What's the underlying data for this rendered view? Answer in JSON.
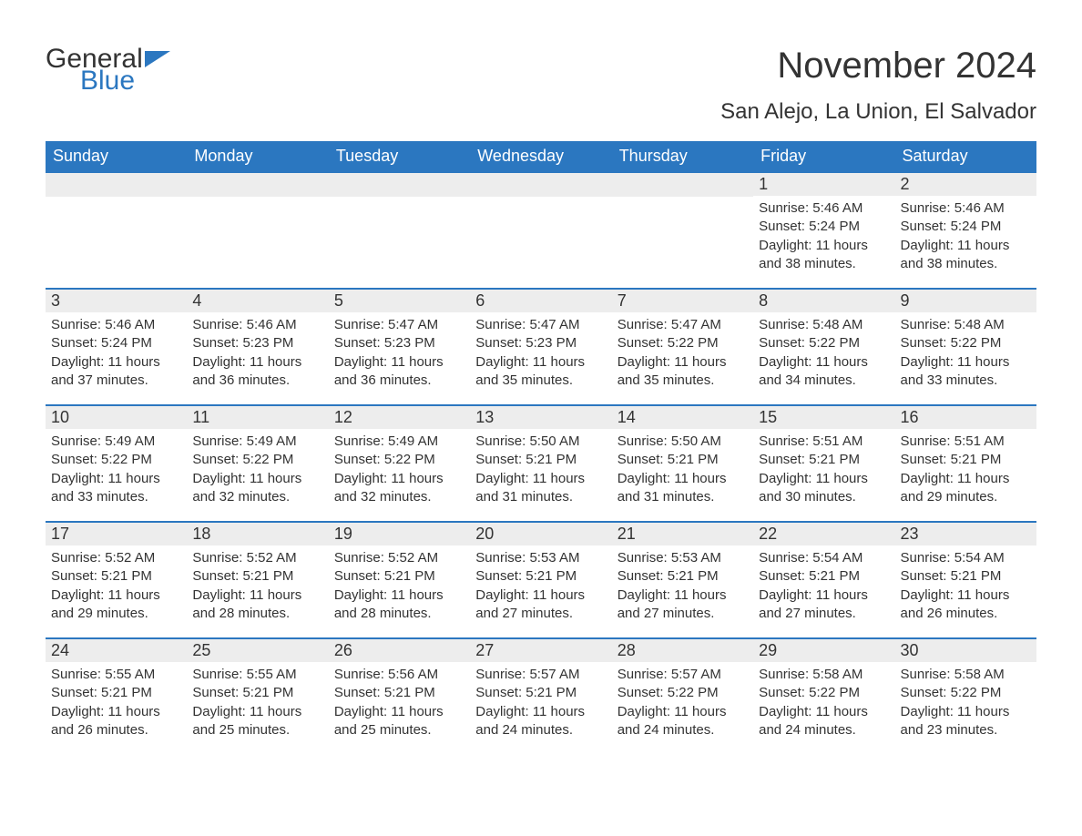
{
  "logo": {
    "line1": "General",
    "line2": "Blue"
  },
  "title": "November 2024",
  "location": "San Alejo, La Union, El Salvador",
  "colors": {
    "header_bg": "#2b77c0",
    "header_text": "#ffffff",
    "daynum_bg": "#ededed",
    "border": "#2b77c0",
    "text": "#333333",
    "page_bg": "#ffffff"
  },
  "type": "calendar-table",
  "columns": [
    "Sunday",
    "Monday",
    "Tuesday",
    "Wednesday",
    "Thursday",
    "Friday",
    "Saturday"
  ],
  "weeks": [
    [
      null,
      null,
      null,
      null,
      null,
      {
        "n": "1",
        "sr": "5:46 AM",
        "ss": "5:24 PM",
        "dl": "11 hours and 38 minutes."
      },
      {
        "n": "2",
        "sr": "5:46 AM",
        "ss": "5:24 PM",
        "dl": "11 hours and 38 minutes."
      }
    ],
    [
      {
        "n": "3",
        "sr": "5:46 AM",
        "ss": "5:24 PM",
        "dl": "11 hours and 37 minutes."
      },
      {
        "n": "4",
        "sr": "5:46 AM",
        "ss": "5:23 PM",
        "dl": "11 hours and 36 minutes."
      },
      {
        "n": "5",
        "sr": "5:47 AM",
        "ss": "5:23 PM",
        "dl": "11 hours and 36 minutes."
      },
      {
        "n": "6",
        "sr": "5:47 AM",
        "ss": "5:23 PM",
        "dl": "11 hours and 35 minutes."
      },
      {
        "n": "7",
        "sr": "5:47 AM",
        "ss": "5:22 PM",
        "dl": "11 hours and 35 minutes."
      },
      {
        "n": "8",
        "sr": "5:48 AM",
        "ss": "5:22 PM",
        "dl": "11 hours and 34 minutes."
      },
      {
        "n": "9",
        "sr": "5:48 AM",
        "ss": "5:22 PM",
        "dl": "11 hours and 33 minutes."
      }
    ],
    [
      {
        "n": "10",
        "sr": "5:49 AM",
        "ss": "5:22 PM",
        "dl": "11 hours and 33 minutes."
      },
      {
        "n": "11",
        "sr": "5:49 AM",
        "ss": "5:22 PM",
        "dl": "11 hours and 32 minutes."
      },
      {
        "n": "12",
        "sr": "5:49 AM",
        "ss": "5:22 PM",
        "dl": "11 hours and 32 minutes."
      },
      {
        "n": "13",
        "sr": "5:50 AM",
        "ss": "5:21 PM",
        "dl": "11 hours and 31 minutes."
      },
      {
        "n": "14",
        "sr": "5:50 AM",
        "ss": "5:21 PM",
        "dl": "11 hours and 31 minutes."
      },
      {
        "n": "15",
        "sr": "5:51 AM",
        "ss": "5:21 PM",
        "dl": "11 hours and 30 minutes."
      },
      {
        "n": "16",
        "sr": "5:51 AM",
        "ss": "5:21 PM",
        "dl": "11 hours and 29 minutes."
      }
    ],
    [
      {
        "n": "17",
        "sr": "5:52 AM",
        "ss": "5:21 PM",
        "dl": "11 hours and 29 minutes."
      },
      {
        "n": "18",
        "sr": "5:52 AM",
        "ss": "5:21 PM",
        "dl": "11 hours and 28 minutes."
      },
      {
        "n": "19",
        "sr": "5:52 AM",
        "ss": "5:21 PM",
        "dl": "11 hours and 28 minutes."
      },
      {
        "n": "20",
        "sr": "5:53 AM",
        "ss": "5:21 PM",
        "dl": "11 hours and 27 minutes."
      },
      {
        "n": "21",
        "sr": "5:53 AM",
        "ss": "5:21 PM",
        "dl": "11 hours and 27 minutes."
      },
      {
        "n": "22",
        "sr": "5:54 AM",
        "ss": "5:21 PM",
        "dl": "11 hours and 27 minutes."
      },
      {
        "n": "23",
        "sr": "5:54 AM",
        "ss": "5:21 PM",
        "dl": "11 hours and 26 minutes."
      }
    ],
    [
      {
        "n": "24",
        "sr": "5:55 AM",
        "ss": "5:21 PM",
        "dl": "11 hours and 26 minutes."
      },
      {
        "n": "25",
        "sr": "5:55 AM",
        "ss": "5:21 PM",
        "dl": "11 hours and 25 minutes."
      },
      {
        "n": "26",
        "sr": "5:56 AM",
        "ss": "5:21 PM",
        "dl": "11 hours and 25 minutes."
      },
      {
        "n": "27",
        "sr": "5:57 AM",
        "ss": "5:21 PM",
        "dl": "11 hours and 24 minutes."
      },
      {
        "n": "28",
        "sr": "5:57 AM",
        "ss": "5:22 PM",
        "dl": "11 hours and 24 minutes."
      },
      {
        "n": "29",
        "sr": "5:58 AM",
        "ss": "5:22 PM",
        "dl": "11 hours and 24 minutes."
      },
      {
        "n": "30",
        "sr": "5:58 AM",
        "ss": "5:22 PM",
        "dl": "11 hours and 23 minutes."
      }
    ]
  ],
  "labels": {
    "sunrise": "Sunrise:",
    "sunset": "Sunset:",
    "daylight": "Daylight:"
  }
}
